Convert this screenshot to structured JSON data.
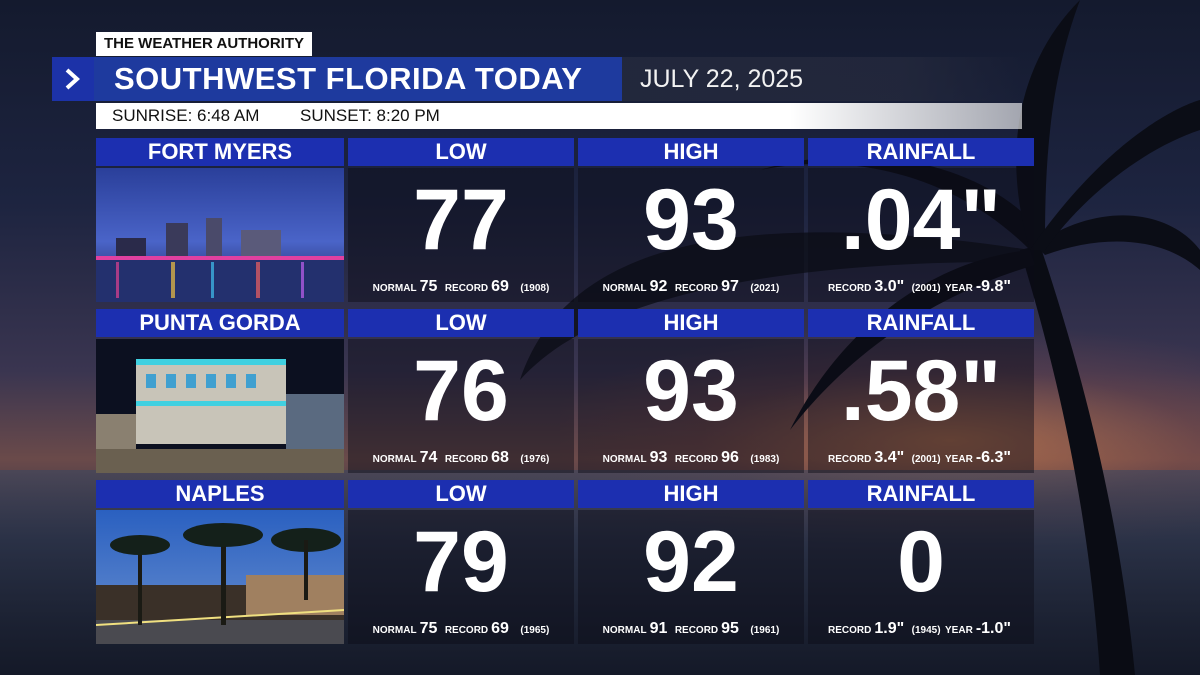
{
  "brand": "THE WEATHER AUTHORITY",
  "title": "SOUTHWEST FLORIDA TODAY",
  "date": "JULY 22, 2025",
  "sunrise": "SUNRISE: 6:48 AM",
  "sunset": "SUNSET: 8:20 PM",
  "headers": {
    "low": "LOW",
    "high": "HIGH",
    "rain": "RAINFALL"
  },
  "labels": {
    "normal": "NORMAL",
    "record": "RECORD",
    "year": "YEAR"
  },
  "cities": [
    {
      "name": "FORT MYERS",
      "low": {
        "value": "77",
        "normal": "75",
        "record": "69",
        "record_year": "(1908)"
      },
      "high": {
        "value": "93",
        "normal": "92",
        "record": "97",
        "record_year": "(2021)"
      },
      "rain": {
        "value": ".04\"",
        "record": "3.0\"",
        "record_year": "(2001)",
        "year": "-9.8\""
      }
    },
    {
      "name": "PUNTA GORDA",
      "low": {
        "value": "76",
        "normal": "74",
        "record": "68",
        "record_year": "(1976)"
      },
      "high": {
        "value": "93",
        "normal": "93",
        "record": "96",
        "record_year": "(1983)"
      },
      "rain": {
        "value": ".58\"",
        "record": "3.4\"",
        "record_year": "(2001)",
        "year": "-6.3\""
      }
    },
    {
      "name": "NAPLES",
      "low": {
        "value": "79",
        "normal": "75",
        "record": "69",
        "record_year": "(1965)"
      },
      "high": {
        "value": "92",
        "normal": "91",
        "record": "95",
        "record_year": "(1961)"
      },
      "rain": {
        "value": "0",
        "record": "1.9\"",
        "record_year": "(1945)",
        "year": "-1.0\""
      }
    }
  ],
  "colors": {
    "header_blue": "#1c2fb0",
    "title_blue": "#1e3a9e"
  }
}
